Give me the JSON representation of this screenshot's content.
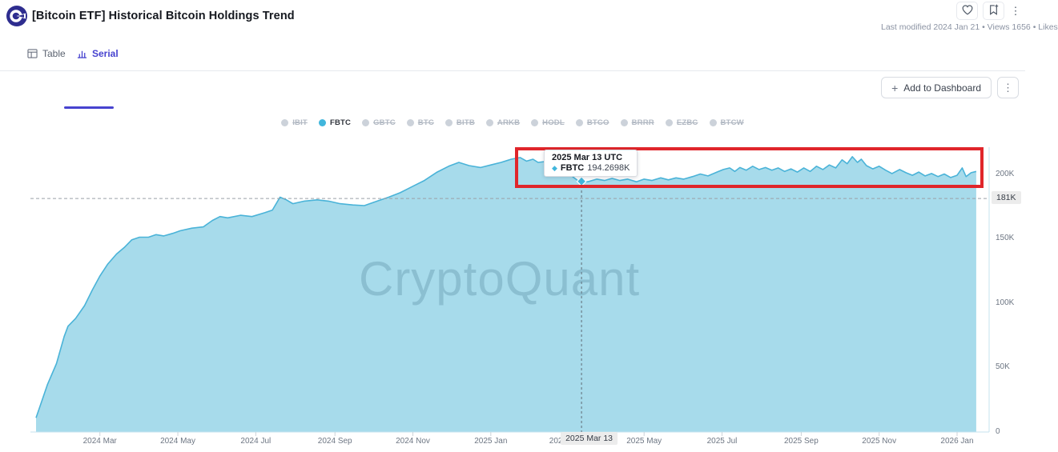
{
  "header": {
    "title": "[Bitcoin ETF] Historical Bitcoin Holdings Trend",
    "meta": "Last modified 2024 Jan 21 • Views 1656 • Likes",
    "menu_icon": "⋮"
  },
  "tabs": [
    {
      "label": "Table",
      "active": false
    },
    {
      "label": "Serial",
      "active": true
    }
  ],
  "toolbar": {
    "add_to_dashboard_label": "Add to Dashboard",
    "plus_icon": "+",
    "menu_icon": "⋮"
  },
  "legend": [
    {
      "ticker": "IBIT",
      "active": false
    },
    {
      "ticker": "FBTC",
      "active": true
    },
    {
      "ticker": "GBTC",
      "active": false
    },
    {
      "ticker": "BTC",
      "active": false
    },
    {
      "ticker": "BITB",
      "active": false
    },
    {
      "ticker": "ARKB",
      "active": false
    },
    {
      "ticker": "HODL",
      "active": false
    },
    {
      "ticker": "BTCO",
      "active": false
    },
    {
      "ticker": "BRRR",
      "active": false
    },
    {
      "ticker": "EZBC",
      "active": false
    },
    {
      "ticker": "BTCW",
      "active": false
    }
  ],
  "tooltip": {
    "date_label": "2025 Mar 13 UTC",
    "marker_icon": "◆",
    "series": "FBTC",
    "value_label": "194.2698K"
  },
  "axis_badges": {
    "y_current": "181K",
    "x_current": "2025 Mar 13"
  },
  "watermark": "CryptoQuant",
  "colors": {
    "accent": "#4743cf",
    "logo": "#2e2d8f",
    "series_dot": "#41b6dc",
    "chart_line": "#4ab3d8",
    "chart_fill": "#a7dbeb",
    "annotation": "#e0262b",
    "badge_bg": "#ececec",
    "ref_dash": "#9aa0a6",
    "crosshair": "#5f6b76",
    "axis_line": "#c6e3ef",
    "watermark": "rgba(70,120,145,0.28)"
  },
  "chart_data": {
    "type": "area",
    "title": "[Bitcoin ETF] Historical Bitcoin Holdings Trend",
    "series_name": "FBTC",
    "unit": "K BTC",
    "grid": false,
    "legend_position": "top",
    "ylim": [
      0,
      220
    ],
    "y_ticks": [
      {
        "value": 200,
        "label": "200K"
      },
      {
        "value": 150,
        "label": "150K"
      },
      {
        "value": 100,
        "label": "100K"
      },
      {
        "value": 50,
        "label": "50K"
      },
      {
        "value": 0,
        "label": "0"
      }
    ],
    "reference_line": {
      "value": 181,
      "label": "181K"
    },
    "x_ticks": [
      {
        "date": "2024-03-01",
        "label": "2024 Mar"
      },
      {
        "date": "2024-05-01",
        "label": "2024 May"
      },
      {
        "date": "2024-07-01",
        "label": "2024 Jul"
      },
      {
        "date": "2024-09-01",
        "label": "2024 Sep"
      },
      {
        "date": "2024-11-01",
        "label": "2024 Nov"
      },
      {
        "date": "2025-01-01",
        "label": "2025 Jan"
      },
      {
        "date": "2025-03-01",
        "label": "2025 Mar"
      },
      {
        "date": "2025-05-01",
        "label": "2025 May"
      },
      {
        "date": "2025-07-01",
        "label": "2025 Jul"
      },
      {
        "date": "2025-09-01",
        "label": "2025 Sep"
      },
      {
        "date": "2025-11-01",
        "label": "2025 Nov"
      },
      {
        "date": "2026-01-01",
        "label": "2026 Jan"
      }
    ],
    "crosshair": {
      "date": "2025-03-13",
      "value": 194.2698
    },
    "dates": [
      "2024-01-11",
      "2024-01-20",
      "2024-01-27",
      "2024-02-02",
      "2024-02-05",
      "2024-02-11",
      "2024-02-18",
      "2024-02-24",
      "2024-03-01",
      "2024-03-07",
      "2024-03-14",
      "2024-03-20",
      "2024-03-26",
      "2024-04-01",
      "2024-04-08",
      "2024-04-14",
      "2024-04-20",
      "2024-04-27",
      "2024-05-03",
      "2024-05-12",
      "2024-05-21",
      "2024-05-28",
      "2024-06-03",
      "2024-06-09",
      "2024-06-19",
      "2024-06-28",
      "2024-07-08",
      "2024-07-14",
      "2024-07-20",
      "2024-07-25",
      "2024-07-30",
      "2024-08-08",
      "2024-08-18",
      "2024-08-27",
      "2024-09-05",
      "2024-09-15",
      "2024-09-24",
      "2024-10-04",
      "2024-10-13",
      "2024-10-22",
      "2024-11-01",
      "2024-11-10",
      "2024-11-20",
      "2024-11-29",
      "2024-12-07",
      "2024-12-15",
      "2024-12-24",
      "2025-01-01",
      "2025-01-09",
      "2025-01-17",
      "2025-01-24",
      "2025-01-29",
      "2025-02-03",
      "2025-02-07",
      "2025-02-12",
      "2025-02-18",
      "2025-02-25",
      "2025-03-01",
      "2025-03-06",
      "2025-03-10",
      "2025-03-13",
      "2025-03-18",
      "2025-03-25",
      "2025-03-31",
      "2025-04-06",
      "2025-04-12",
      "2025-04-18",
      "2025-04-25",
      "2025-05-01",
      "2025-05-07",
      "2025-05-14",
      "2025-05-20",
      "2025-05-26",
      "2025-06-01",
      "2025-06-08",
      "2025-06-14",
      "2025-06-20",
      "2025-06-27",
      "2025-07-02",
      "2025-07-07",
      "2025-07-11",
      "2025-07-15",
      "2025-07-20",
      "2025-07-25",
      "2025-07-30",
      "2025-08-04",
      "2025-08-09",
      "2025-08-14",
      "2025-08-19",
      "2025-08-24",
      "2025-08-29",
      "2025-09-03",
      "2025-09-08",
      "2025-09-13",
      "2025-09-18",
      "2025-09-23",
      "2025-09-28",
      "2025-10-03",
      "2025-10-07",
      "2025-10-11",
      "2025-10-15",
      "2025-10-18",
      "2025-10-22",
      "2025-10-27",
      "2025-11-01",
      "2025-11-06",
      "2025-11-11",
      "2025-11-17",
      "2025-11-22",
      "2025-11-27",
      "2025-12-02",
      "2025-12-07",
      "2025-12-12",
      "2025-12-17",
      "2025-12-22",
      "2025-12-27",
      "2026-01-01",
      "2026-01-05",
      "2026-01-08",
      "2026-01-12",
      "2026-01-16"
    ],
    "values": [
      11,
      37,
      53,
      74,
      82,
      88,
      98,
      110,
      121,
      130,
      138,
      143,
      149,
      151,
      151,
      153,
      152,
      154,
      156,
      158,
      159,
      164,
      167,
      166,
      168,
      167,
      170,
      172,
      182,
      180,
      177,
      179,
      180,
      179,
      177,
      176,
      175.5,
      179,
      182,
      185.5,
      190.5,
      195,
      201.5,
      206,
      209,
      206.5,
      205,
      207,
      209,
      211.5,
      212.8,
      210,
      211.5,
      209,
      209.6,
      206.5,
      203.5,
      201,
      198,
      195,
      194.2698,
      194,
      196,
      195,
      196.6,
      195,
      196,
      194,
      196,
      195,
      197,
      195.5,
      197,
      196,
      198,
      200,
      198.5,
      201.5,
      203.5,
      204.7,
      202,
      205,
      203,
      206,
      203.5,
      205,
      203,
      204.7,
      202,
      204,
      201.5,
      204.7,
      202,
      206,
      203.5,
      207,
      204.7,
      211,
      208,
      213.4,
      209,
      211.5,
      206.5,
      204,
      206,
      203,
      200.4,
      203.5,
      201,
      199,
      201.5,
      198.5,
      200.4,
      198,
      200,
      197.3,
      199,
      204.7,
      198,
      201,
      202
    ]
  }
}
